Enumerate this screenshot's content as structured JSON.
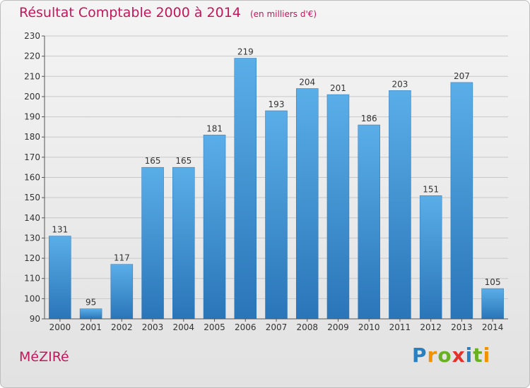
{
  "page": {
    "title": "Résultat Comptable 2000 à 2014",
    "unit": "(en milliers d'€)",
    "commune": "MéZIRé",
    "logo": {
      "letters": [
        "P",
        "r",
        "o",
        "x",
        "i",
        "t",
        "i"
      ],
      "colors": [
        "#2a7fc1",
        "#f39200",
        "#6ab023",
        "#e4312b",
        "#2a7fc1",
        "#6ab023",
        "#f39200"
      ]
    }
  },
  "chart_data": {
    "type": "bar",
    "title": "Résultat Comptable 2000 à 2014",
    "subtitle": "(en milliers d'€)",
    "categories": [
      "2000",
      "2001",
      "2002",
      "2003",
      "2004",
      "2005",
      "2006",
      "2007",
      "2008",
      "2009",
      "2010",
      "2011",
      "2012",
      "2013",
      "2014"
    ],
    "values": [
      131,
      95,
      117,
      165,
      165,
      181,
      219,
      193,
      204,
      201,
      186,
      203,
      151,
      207,
      105
    ],
    "value_labels": [
      "131",
      "95",
      "117",
      "165",
      "165",
      "181",
      "219",
      "193",
      "204",
      "201",
      "186",
      "203",
      "151",
      "207",
      "105"
    ],
    "ylim": [
      90,
      230
    ],
    "yticks": [
      "90",
      "100",
      "110",
      "120",
      "130",
      "140",
      "150",
      "160",
      "170",
      "180",
      "190",
      "200",
      "210",
      "220",
      "230"
    ],
    "grid": true,
    "bar_color": "#3d97dc",
    "bar_color_dark": "#2a75b8"
  }
}
